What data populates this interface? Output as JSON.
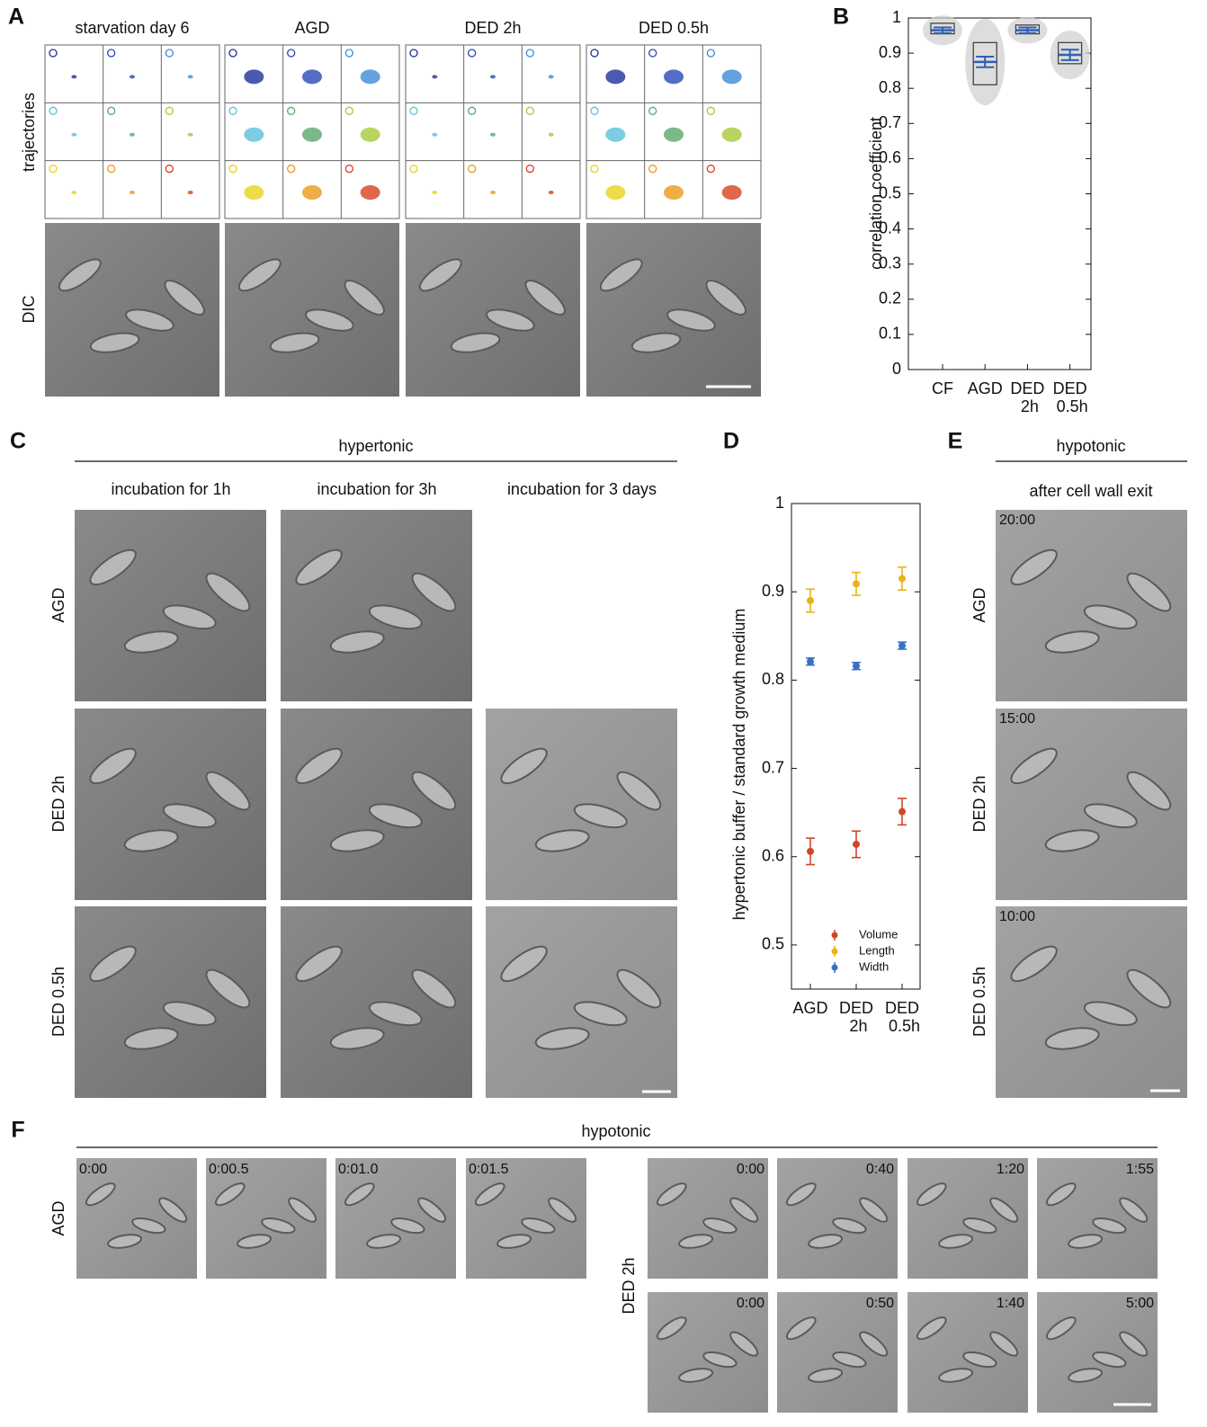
{
  "panel_labels": [
    "A",
    "B",
    "C",
    "D",
    "E",
    "F"
  ],
  "panel_a": {
    "conditions": [
      "starvation day 6",
      "AGD",
      "DED 2h",
      "DED 0.5h"
    ],
    "row_labels": [
      "trajectories",
      "DIC"
    ]
  },
  "panel_c": {
    "header": "hypertonic",
    "columns": [
      "incubation for 1h",
      "incubation for 3h",
      "incubation for 3 days"
    ],
    "rows": [
      "AGD",
      "DED 2h",
      "DED 0.5h"
    ]
  },
  "panel_e": {
    "header": "hypotonic",
    "subheader": "after cell wall exit",
    "rows": [
      "AGD",
      "DED 2h",
      "DED 0.5h"
    ],
    "timestamps": [
      "20:00",
      "15:00",
      "10:00"
    ]
  },
  "panel_f": {
    "header": "hypotonic",
    "rows": [
      "AGD",
      "DED 2h"
    ],
    "agd_times": [
      "0:00",
      "0:00.5",
      "0:01.0",
      "0:01.5"
    ],
    "ded_times": [
      [
        "0:00",
        "0:40",
        "1:20",
        "1:55"
      ],
      [
        "0:00",
        "0:50",
        "1:40",
        "5:00"
      ]
    ]
  },
  "chart_data": [
    {
      "type": "box",
      "y_label": "correlation coefficient",
      "categories": [
        "CF",
        "AGD",
        "DED 2h",
        "DED 0.5h"
      ],
      "q1": [
        0.955,
        0.81,
        0.955,
        0.87
      ],
      "q3": [
        0.985,
        0.93,
        0.98,
        0.93
      ],
      "mean": [
        0.965,
        0.875,
        0.965,
        0.895
      ],
      "error": [
        0.008,
        0.015,
        0.008,
        0.015
      ],
      "box_color": "#444444",
      "color": "#2f5fb3",
      "ylim": [
        0,
        1
      ],
      "yticks": [
        0,
        0.1,
        0.2,
        0.3,
        0.4,
        0.5,
        0.6,
        0.7,
        0.8,
        0.9,
        1
      ]
    },
    {
      "type": "errorbar",
      "y_label": "hypertonic buffer / standard growth medium",
      "categories": [
        "AGD",
        "DED 2h",
        "DED 0.5h"
      ],
      "series": [
        {
          "name": "Volume",
          "color": "#d0452a",
          "values": [
            0.606,
            0.614,
            0.651
          ],
          "errors": [
            0.015,
            0.015,
            0.015
          ]
        },
        {
          "name": "Length",
          "color": "#e8b21a",
          "values": [
            0.89,
            0.909,
            0.915
          ],
          "errors": [
            0.013,
            0.013,
            0.013
          ]
        },
        {
          "name": "Width",
          "color": "#3a6fc4",
          "values": [
            0.821,
            0.816,
            0.839
          ],
          "errors": [
            0.004,
            0.004,
            0.004
          ]
        }
      ],
      "ylim": [
        0.45,
        1
      ],
      "yticks": [
        0.5,
        0.6,
        0.7,
        0.8,
        0.9,
        1
      ],
      "legend": "lower center"
    }
  ]
}
